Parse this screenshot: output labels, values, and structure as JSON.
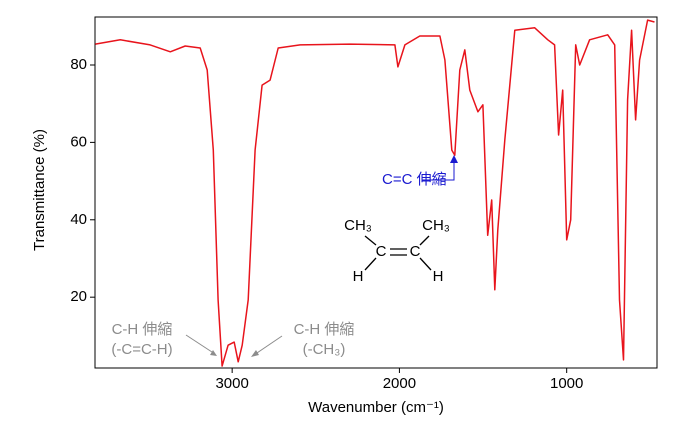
{
  "chart_data": {
    "type": "line",
    "x_label": "Wavenumber (cm⁻¹)",
    "y_label": "Transmittance (%)",
    "xlim": [
      3820,
      460
    ],
    "ylim": [
      1.7,
      92.4
    ],
    "xticks": [
      3000,
      2000,
      1000
    ],
    "yticks": [
      20,
      40,
      60,
      80
    ],
    "x": [
      3818,
      3669,
      3490,
      3370,
      3281,
      3191,
      3149,
      3113,
      3084,
      3060,
      3024,
      2988,
      2964,
      2940,
      2904,
      2863,
      2821,
      2773,
      2725,
      2594,
      2296,
      2027,
      2009,
      1967,
      1878,
      1758,
      1728,
      1687,
      1669,
      1639,
      1609,
      1579,
      1531,
      1501,
      1472,
      1448,
      1430,
      1412,
      1370,
      1310,
      1191,
      1113,
      1072,
      1048,
      1024,
      1000,
      976,
      946,
      922,
      863,
      755,
      713,
      684,
      660,
      636,
      612,
      588,
      564,
      516,
      475
    ],
    "series": [
      {
        "color": "#e8141c",
        "values": [
          85.4,
          86.5,
          85.2,
          83.4,
          84.9,
          84.4,
          78.7,
          58,
          19.3,
          2.2,
          7.6,
          8.4,
          3.3,
          7.6,
          19.3,
          58,
          74.8,
          76.1,
          84.4,
          85.2,
          85.4,
          85.2,
          79.5,
          85.2,
          87.5,
          87.5,
          81.3,
          58,
          56.7,
          78.7,
          83.9,
          73.5,
          67.9,
          69.7,
          36,
          45.1,
          21.9,
          37.4,
          60.6,
          89,
          89.6,
          86.5,
          85.2,
          61.9,
          73.5,
          34.8,
          40,
          85.2,
          80,
          86.5,
          87.8,
          85.2,
          19.3,
          3.8,
          71,
          89,
          65.8,
          81.3,
          91.6,
          91.1
        ]
      }
    ],
    "annotations": [
      {
        "lines": [
          "C=C 伸縮"
        ],
        "color": "#1a1ad0"
      },
      {
        "lines": [
          "C-H 伸縮",
          "(-C=C-H)"
        ],
        "color": "#8c8c8c"
      },
      {
        "lines": [
          "C-H 伸縮",
          "(-CH₃)"
        ],
        "color": "#8c8c8c"
      }
    ],
    "structure_labels": [
      "CH₃",
      "CH₃",
      "C",
      "C",
      "H",
      "H"
    ]
  }
}
